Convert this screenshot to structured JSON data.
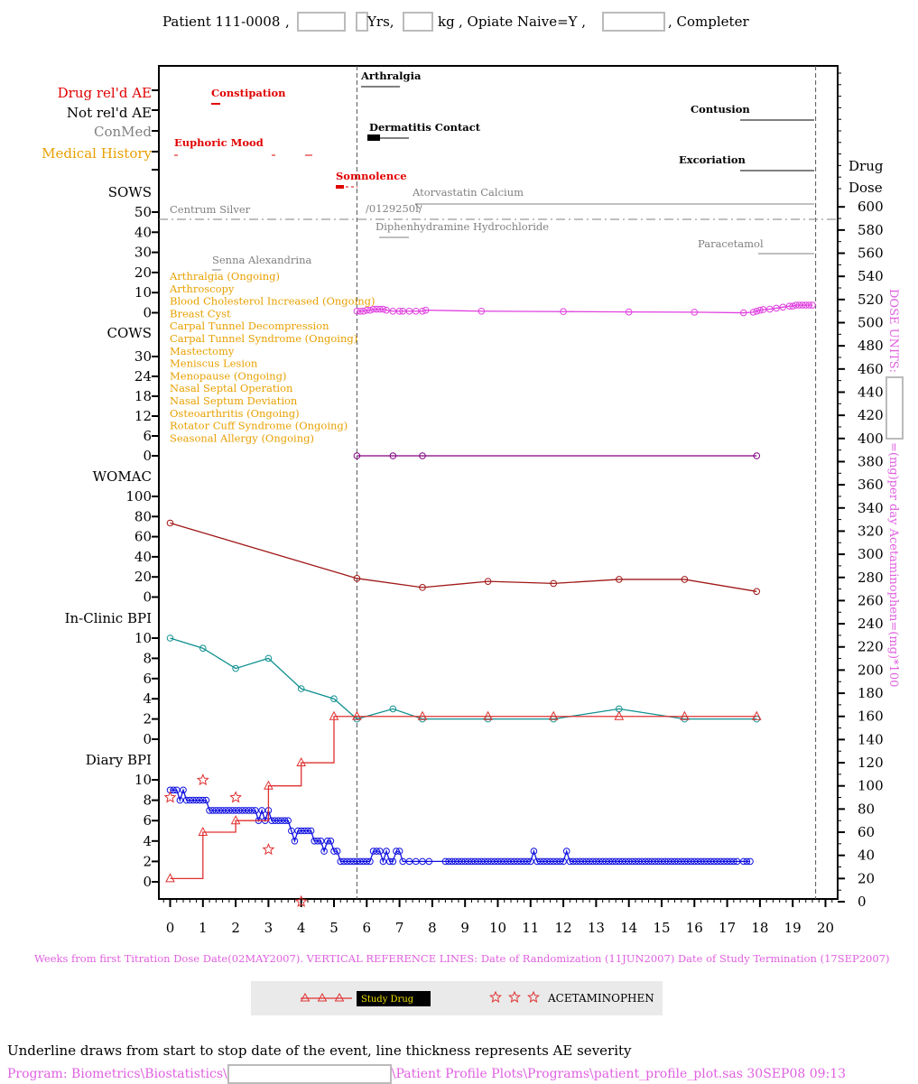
{
  "header": {
    "patient": "Patient 111-0008",
    "sep1": ",",
    "yrs": "Yrs,",
    "kg": "kg",
    "opiate": ", Opiate Naive=Y ,",
    "completer": ", Completer"
  },
  "right_axis": {
    "title_drug": "Drug",
    "title_dose": "Dose",
    "ticks": [
      "0",
      "20",
      "40",
      "60",
      "80",
      "100",
      "120",
      "140",
      "160",
      "180",
      "200",
      "220",
      "240",
      "260",
      "280",
      "300",
      "320",
      "340",
      "360",
      "380",
      "400",
      "420",
      "440",
      "460",
      "480",
      "500",
      "520",
      "540",
      "560",
      "580",
      "600"
    ],
    "side_label_1": "DOSE UNITS:",
    "side_label_2": "=(mg)per day  Acetaminophen=(mg)*100"
  },
  "left_labels": {
    "drug_ae": "Drug rel'd AE",
    "not_ae": "Not rel'd AE",
    "conmed": "ConMed",
    "medhist": "Medical History",
    "sows": "SOWS",
    "cows": "COWS",
    "womac": "WOMAC",
    "bpi": "In-Clinic BPI",
    "diary": "Diary BPI"
  },
  "panel_ticks": {
    "sows": [
      "50",
      "40",
      "30",
      "20",
      "10",
      "0"
    ],
    "cows": [
      "30",
      "24",
      "18",
      "12",
      "6",
      "0"
    ],
    "womac": [
      "100",
      "80",
      "60",
      "40",
      "20",
      "0"
    ],
    "bpi": [
      "10",
      "8",
      "6",
      "4",
      "2",
      "0"
    ],
    "diary": [
      "10",
      "8",
      "6",
      "4",
      "2",
      "0"
    ]
  },
  "colors": {
    "drug_ae": "#e00000",
    "conmed": "#808080",
    "medhist": "#e8a000",
    "sows": "#e040e0",
    "cows": "#800080",
    "womac": "#a01818",
    "bpi": "#109090",
    "diary": "#1010e0",
    "study_drug": "#e03030",
    "acet": "#e03030",
    "footer": "#e060e0"
  },
  "events": {
    "drug_ae": [
      {
        "label": "Constipation"
      },
      {
        "label": "Euphoric Mood"
      },
      {
        "label": "Somnolence"
      }
    ],
    "not_ae": [
      {
        "label": "Arthralgia"
      },
      {
        "label": "Dermatitis Contact"
      },
      {
        "label": "Contusion"
      },
      {
        "label": "Excoriation"
      }
    ],
    "conmed": [
      {
        "label": "Atorvastatin Calcium"
      },
      {
        "label": "Centrum Silver"
      },
      {
        "label": "/0129250l/"
      },
      {
        "label": "Diphenhydramine Hydrochloride"
      },
      {
        "label": "Paracetamol"
      },
      {
        "label": "Senna Alexandrina"
      }
    ],
    "medhist": [
      "Arthralgia (Ongoing)",
      "Arthroscopy",
      "Blood Cholesterol Increased (Ongoing)",
      "Breast Cyst",
      "Carpal Tunnel Decompression",
      "Carpal Tunnel Syndrome (Ongoing)",
      "Mastectomy",
      "Meniscus Lesion",
      "Menopause (Ongoing)",
      "Nasal Septal Operation",
      "Nasal Septum Deviation",
      "Osteoarthritis (Ongoing)",
      "Rotator Cuff Syndrome (Ongoing)",
      "Seasonal Allergy (Ongoing)"
    ]
  },
  "chart_data": {
    "type": "line",
    "xlabel": "Weeks from first Titration Dose Date(02MAY2007).  VERTICAL REFERENCE LINES: Date of Randomization (11JUN2007)  Date of Study Termination (17SEP2007)",
    "x_ticks": [
      "0",
      "1",
      "2",
      "3",
      "4",
      "5",
      "6",
      "7",
      "8",
      "9",
      "10",
      "11",
      "12",
      "13",
      "14",
      "15",
      "16",
      "17",
      "18",
      "19",
      "20"
    ],
    "xlim": [
      -0.3,
      20.3
    ],
    "reference_lines_weeks": [
      5.7,
      19.7
    ],
    "series": [
      {
        "name": "SOWS",
        "points": [
          [
            5.7,
            1
          ],
          [
            5.8,
            1
          ],
          [
            5.9,
            1
          ],
          [
            6.0,
            1.5
          ],
          [
            6.1,
            1.5
          ],
          [
            6.2,
            2
          ],
          [
            6.3,
            2
          ],
          [
            6.4,
            2
          ],
          [
            6.5,
            2
          ],
          [
            6.6,
            1.5
          ],
          [
            6.8,
            1
          ],
          [
            7.0,
            1
          ],
          [
            7.1,
            1
          ],
          [
            7.3,
            1
          ],
          [
            7.5,
            1
          ],
          [
            7.7,
            1
          ],
          [
            7.8,
            1.5
          ],
          [
            9.5,
            1
          ],
          [
            12.0,
            0.8
          ],
          [
            14.0,
            0.6
          ],
          [
            16.0,
            0.5
          ],
          [
            17.5,
            0.2
          ],
          [
            17.8,
            0.5
          ],
          [
            17.9,
            1
          ],
          [
            18.0,
            1.5
          ],
          [
            18.1,
            1.8
          ],
          [
            18.3,
            2
          ],
          [
            18.5,
            2.5
          ],
          [
            18.7,
            3
          ],
          [
            18.9,
            3.5
          ],
          [
            19.0,
            3.5
          ],
          [
            19.1,
            4
          ],
          [
            19.2,
            4
          ],
          [
            19.3,
            4
          ],
          [
            19.4,
            4
          ],
          [
            19.5,
            4
          ],
          [
            19.6,
            4
          ]
        ]
      },
      {
        "name": "COWS",
        "points": [
          [
            5.7,
            0
          ],
          [
            6.8,
            0
          ],
          [
            7.7,
            0
          ],
          [
            17.9,
            0
          ]
        ]
      },
      {
        "name": "WOMAC",
        "points": [
          [
            0,
            74
          ],
          [
            5.7,
            19
          ],
          [
            7.7,
            10
          ],
          [
            9.7,
            16
          ],
          [
            11.7,
            14
          ],
          [
            13.7,
            18
          ],
          [
            15.7,
            18
          ],
          [
            17.9,
            6
          ]
        ]
      },
      {
        "name": "In-Clinic BPI",
        "points": [
          [
            0,
            10
          ],
          [
            1,
            9
          ],
          [
            2,
            7
          ],
          [
            3,
            8
          ],
          [
            4,
            5
          ],
          [
            5,
            4
          ],
          [
            5.7,
            2
          ],
          [
            6.8,
            3
          ],
          [
            7.7,
            2
          ],
          [
            9.7,
            2
          ],
          [
            11.7,
            2
          ],
          [
            13.7,
            3
          ],
          [
            15.7,
            2
          ],
          [
            17.9,
            2
          ]
        ]
      },
      {
        "name": "Diary BPI",
        "points": [
          [
            0,
            9
          ],
          [
            0.1,
            9
          ],
          [
            0.2,
            9
          ],
          [
            0.3,
            8
          ],
          [
            0.4,
            9
          ],
          [
            0.5,
            8
          ],
          [
            0.6,
            8
          ],
          [
            0.7,
            8
          ],
          [
            0.8,
            8
          ],
          [
            0.9,
            8
          ],
          [
            1.0,
            8
          ],
          [
            1.1,
            8
          ],
          [
            1.2,
            7
          ],
          [
            1.3,
            7
          ],
          [
            1.4,
            7
          ],
          [
            1.5,
            7
          ],
          [
            1.6,
            7
          ],
          [
            1.7,
            7
          ],
          [
            1.8,
            7
          ],
          [
            1.9,
            7
          ],
          [
            2.0,
            7
          ],
          [
            2.1,
            7
          ],
          [
            2.2,
            7
          ],
          [
            2.3,
            7
          ],
          [
            2.4,
            7
          ],
          [
            2.5,
            7
          ],
          [
            2.6,
            7
          ],
          [
            2.7,
            6
          ],
          [
            2.8,
            7
          ],
          [
            2.9,
            6
          ],
          [
            3.0,
            7
          ],
          [
            3.1,
            6
          ],
          [
            3.2,
            6
          ],
          [
            3.3,
            6
          ],
          [
            3.4,
            6
          ],
          [
            3.5,
            6
          ],
          [
            3.6,
            6
          ],
          [
            3.7,
            5
          ],
          [
            3.8,
            4
          ],
          [
            3.9,
            5
          ],
          [
            4.0,
            5
          ],
          [
            4.1,
            5
          ],
          [
            4.2,
            5
          ],
          [
            4.3,
            5
          ],
          [
            4.4,
            4
          ],
          [
            4.5,
            4
          ],
          [
            4.6,
            4
          ],
          [
            4.7,
            3
          ],
          [
            4.8,
            4
          ],
          [
            4.9,
            4
          ],
          [
            5.0,
            3
          ],
          [
            5.1,
            3
          ],
          [
            5.2,
            2
          ],
          [
            5.3,
            2
          ],
          [
            5.4,
            2
          ],
          [
            5.5,
            2
          ],
          [
            5.6,
            2
          ],
          [
            5.7,
            2
          ],
          [
            5.8,
            2
          ],
          [
            5.9,
            2
          ],
          [
            6.0,
            2
          ],
          [
            6.1,
            2
          ],
          [
            6.2,
            3
          ],
          [
            6.3,
            3
          ],
          [
            6.4,
            3
          ],
          [
            6.5,
            2
          ],
          [
            6.6,
            3
          ],
          [
            6.7,
            2
          ],
          [
            6.8,
            2
          ],
          [
            6.9,
            3
          ],
          [
            7.0,
            3
          ],
          [
            7.1,
            2
          ],
          [
            7.3,
            2
          ],
          [
            7.5,
            2
          ],
          [
            7.7,
            2
          ],
          [
            7.9,
            2
          ],
          [
            8.4,
            2
          ],
          [
            8.5,
            2
          ],
          [
            8.6,
            2
          ],
          [
            8.7,
            2
          ],
          [
            8.8,
            2
          ],
          [
            8.9,
            2
          ],
          [
            9.0,
            2
          ],
          [
            9.1,
            2
          ],
          [
            9.2,
            2
          ],
          [
            9.3,
            2
          ],
          [
            9.4,
            2
          ],
          [
            9.5,
            2
          ],
          [
            9.6,
            2
          ],
          [
            9.7,
            2
          ],
          [
            9.8,
            2
          ],
          [
            9.9,
            2
          ],
          [
            10.0,
            2
          ],
          [
            10.1,
            2
          ],
          [
            10.2,
            2
          ],
          [
            10.3,
            2
          ],
          [
            10.4,
            2
          ],
          [
            10.5,
            2
          ],
          [
            10.6,
            2
          ],
          [
            10.7,
            2
          ],
          [
            10.8,
            2
          ],
          [
            10.9,
            2
          ],
          [
            11.0,
            2
          ],
          [
            11.1,
            3
          ],
          [
            11.2,
            2
          ],
          [
            11.3,
            2
          ],
          [
            11.4,
            2
          ],
          [
            11.5,
            2
          ],
          [
            11.6,
            2
          ],
          [
            11.7,
            2
          ],
          [
            11.8,
            2
          ],
          [
            11.9,
            2
          ],
          [
            12.0,
            2
          ],
          [
            12.1,
            3
          ],
          [
            12.2,
            2
          ],
          [
            12.3,
            2
          ],
          [
            12.4,
            2
          ],
          [
            12.5,
            2
          ],
          [
            12.6,
            2
          ],
          [
            12.7,
            2
          ],
          [
            12.8,
            2
          ],
          [
            12.9,
            2
          ],
          [
            13.0,
            2
          ],
          [
            13.1,
            2
          ],
          [
            13.2,
            2
          ],
          [
            13.3,
            2
          ],
          [
            13.4,
            2
          ],
          [
            13.5,
            2
          ],
          [
            13.6,
            2
          ],
          [
            13.7,
            2
          ],
          [
            13.8,
            2
          ],
          [
            13.9,
            2
          ],
          [
            14.0,
            2
          ],
          [
            14.1,
            2
          ],
          [
            14.2,
            2
          ],
          [
            14.3,
            2
          ],
          [
            14.4,
            2
          ],
          [
            14.5,
            2
          ],
          [
            14.6,
            2
          ],
          [
            14.7,
            2
          ],
          [
            14.8,
            2
          ],
          [
            14.9,
            2
          ],
          [
            15.0,
            2
          ],
          [
            15.1,
            2
          ],
          [
            15.2,
            2
          ],
          [
            15.3,
            2
          ],
          [
            15.4,
            2
          ],
          [
            15.5,
            2
          ],
          [
            15.6,
            2
          ],
          [
            15.7,
            2
          ],
          [
            15.8,
            2
          ],
          [
            15.9,
            2
          ],
          [
            16.0,
            2
          ],
          [
            16.1,
            2
          ],
          [
            16.2,
            2
          ],
          [
            16.3,
            2
          ],
          [
            16.4,
            2
          ],
          [
            16.5,
            2
          ],
          [
            16.6,
            2
          ],
          [
            16.7,
            2
          ],
          [
            16.8,
            2
          ],
          [
            16.9,
            2
          ],
          [
            17.0,
            2
          ],
          [
            17.1,
            2
          ],
          [
            17.2,
            2
          ],
          [
            17.3,
            2
          ],
          [
            17.5,
            2
          ],
          [
            17.6,
            2
          ],
          [
            17.7,
            2
          ]
        ]
      },
      {
        "name": "Study Drug",
        "axis": "right",
        "points": [
          [
            0,
            20
          ],
          [
            1,
            60
          ],
          [
            2,
            70
          ],
          [
            3,
            100
          ],
          [
            4,
            120
          ],
          [
            5,
            160
          ],
          [
            5.7,
            160
          ],
          [
            7.7,
            160
          ],
          [
            9.7,
            160
          ],
          [
            11.7,
            160
          ],
          [
            13.7,
            160
          ],
          [
            15.7,
            160
          ],
          [
            17.9,
            160
          ]
        ]
      },
      {
        "name": "ACETAMINOPHEN",
        "axis": "right",
        "points": [
          [
            0,
            90
          ],
          [
            1,
            105
          ],
          [
            2,
            90
          ],
          [
            3,
            45
          ],
          [
            4,
            0
          ]
        ]
      }
    ],
    "legend": [
      "Study Drug",
      "ACETAMINOPHEN"
    ]
  },
  "footer": {
    "note": "Underline draws from start to stop date of the event, line thickness represents AE severity",
    "program_a": "Program: Biometrics\\Biostatistics\\",
    "program_b": "\\Patient Profile Plots\\Programs\\patient_profile_plot.sas 30SEP08 09:13"
  }
}
